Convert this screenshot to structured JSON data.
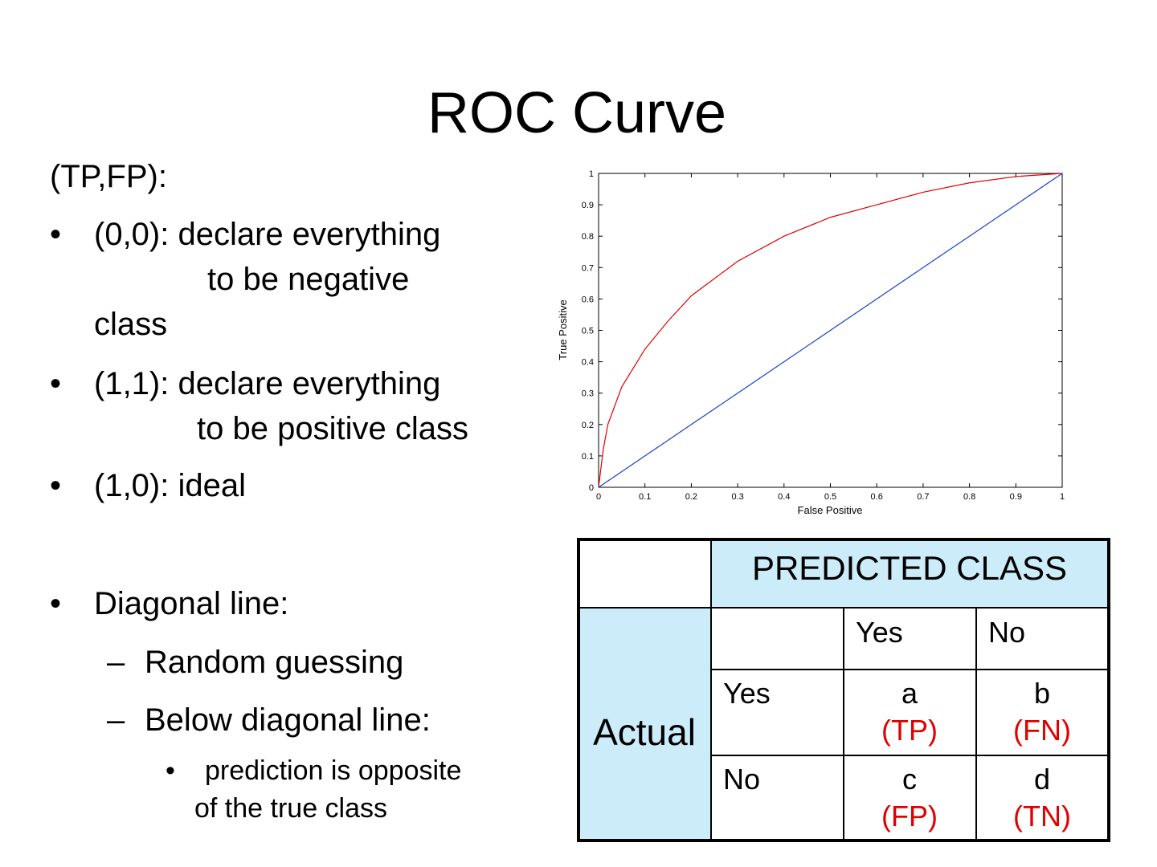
{
  "title": "ROC Curve",
  "intro": "(TP,FP):",
  "bullets": [
    {
      "marker": "•",
      "lines": [
        "(0,0): declare everything",
        "to be negative",
        "class"
      ]
    },
    {
      "marker": "•",
      "lines": [
        "(1,1): declare everything",
        "to be positive class"
      ]
    },
    {
      "marker": "•",
      "lines": [
        "(1,0): ideal"
      ]
    },
    {
      "marker": "•",
      "lines": [
        "Diagonal line:"
      ]
    }
  ],
  "sub_bullets": [
    {
      "marker": "–",
      "text": "Random guessing"
    },
    {
      "marker": "–",
      "text": "Below diagonal line:"
    }
  ],
  "sub_sub_bullet": {
    "marker": "•",
    "lines": [
      "prediction is opposite",
      "of the true class"
    ]
  },
  "chart_data": {
    "type": "line",
    "x_label": "False Positive",
    "y_label": "True Positive",
    "x": [
      0,
      0.01,
      0.02,
      0.05,
      0.1,
      0.15,
      0.2,
      0.3,
      0.4,
      0.5,
      0.6,
      0.7,
      0.8,
      0.9,
      1
    ],
    "series": [
      {
        "color": "#e00000",
        "values": [
          0,
          0.12,
          0.2,
          0.32,
          0.44,
          0.53,
          0.61,
          0.72,
          0.8,
          0.86,
          0.9,
          0.94,
          0.97,
          0.99,
          1
        ]
      },
      {
        "color": "#1a3fd0",
        "values": [
          0,
          0.01,
          0.02,
          0.05,
          0.1,
          0.15,
          0.2,
          0.3,
          0.4,
          0.5,
          0.6,
          0.7,
          0.8,
          0.9,
          1
        ]
      }
    ],
    "xlim": [
      0,
      1
    ],
    "ylim": [
      0,
      1
    ],
    "xticks": [
      0,
      0.1,
      0.2,
      0.3,
      0.4,
      0.5,
      0.6,
      0.7,
      0.8,
      0.9,
      1
    ],
    "yticks": [
      0,
      0.1,
      0.2,
      0.3,
      0.4,
      0.5,
      0.6,
      0.7,
      0.8,
      0.9,
      1
    ],
    "grid": false
  },
  "table": {
    "header": "PREDICTED CLASS",
    "row_header": "Actual",
    "columns": [
      "Yes",
      "No"
    ],
    "rows": [
      {
        "label": "Yes",
        "cells": [
          [
            "a",
            "(TP)"
          ],
          [
            "b",
            "(FN)"
          ]
        ]
      },
      {
        "label": "No",
        "cells": [
          [
            "c",
            "(FP)"
          ],
          [
            "d",
            "(TN)"
          ]
        ]
      }
    ]
  }
}
